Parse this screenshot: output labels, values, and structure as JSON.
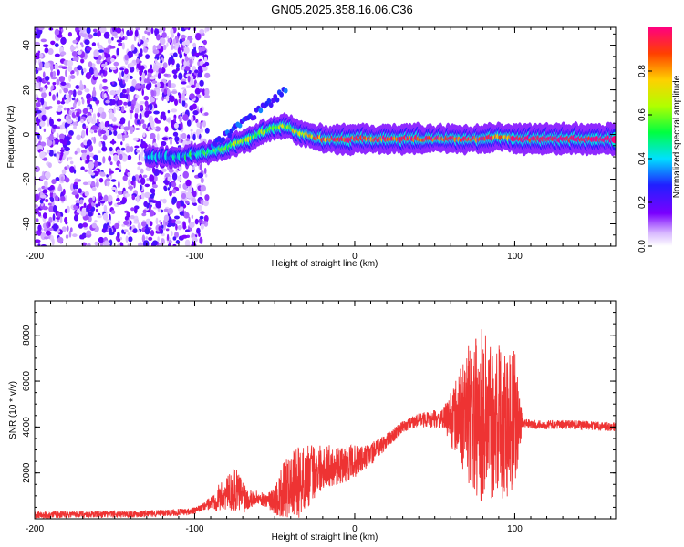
{
  "title": "GN05.2025.358.16.06.C36",
  "chart_data": [
    {
      "type": "heatmap",
      "xlabel": "Height of straight line (km)",
      "ylabel": "Frequency (Hz)",
      "xlim": [
        -200,
        163
      ],
      "ylim": [
        -50,
        48
      ],
      "xticks": [
        -200,
        -100,
        0,
        100
      ],
      "xtick_labels": [
        "-200",
        "-100",
        "0",
        "100"
      ],
      "yticks": [
        -40,
        -20,
        0,
        20,
        40
      ],
      "ytick_labels": [
        "-40",
        "-20",
        "0",
        "20",
        "40"
      ],
      "colorbar": {
        "label": "Normalized spectral amplitude",
        "range": [
          0,
          1
        ],
        "ticks": [
          0.0,
          0.2,
          0.4,
          0.6,
          0.8
        ],
        "tick_labels": [
          "0.0",
          "0.2",
          "0.4",
          "0.6",
          "0.8"
        ]
      },
      "ridge": {
        "x": [
          -130,
          -110,
          -100,
          -90,
          -80,
          -70,
          -60,
          -50,
          -45,
          -40,
          -35,
          -30,
          -25,
          -20,
          -10,
          0,
          20,
          40,
          60,
          80,
          90,
          95,
          100,
          120,
          140,
          163
        ],
        "freq": [
          -10,
          -10,
          -9,
          -8,
          -6,
          -3,
          0,
          3,
          4,
          3,
          1,
          0,
          -1,
          -2,
          -2,
          -2,
          -2,
          -2,
          -2,
          -2,
          -1,
          -1,
          -2,
          -2,
          -2,
          -2
        ],
        "amplitude": [
          0.25,
          0.35,
          0.4,
          0.45,
          0.5,
          0.55,
          0.5,
          0.5,
          0.55,
          0.6,
          0.65,
          0.7,
          0.75,
          0.8,
          0.85,
          0.85,
          0.85,
          0.85,
          0.85,
          0.85,
          0.8,
          0.7,
          0.9,
          0.95,
          0.95,
          0.95
        ]
      },
      "noise_region_x": [
        -200,
        -100
      ]
    },
    {
      "type": "line",
      "xlabel": "Height of straight line (km)",
      "ylabel": "SNR (10 * v/v)",
      "xlim": [
        -200,
        163
      ],
      "ylim": [
        0,
        9500
      ],
      "xticks": [
        -200,
        -100,
        0,
        100
      ],
      "xtick_labels": [
        "-200",
        "-100",
        "0",
        "100"
      ],
      "yticks": [
        2000,
        4000,
        6000,
        8000
      ],
      "ytick_labels": [
        "2000",
        "4000",
        "6000",
        "8000"
      ],
      "series": [
        {
          "name": "SNR",
          "color": "#ee3333",
          "x": [
            -200,
            -180,
            -160,
            -140,
            -120,
            -105,
            -100,
            -95,
            -90,
            -85,
            -80,
            -75,
            -70,
            -65,
            -60,
            -55,
            -50,
            -45,
            -40,
            -35,
            -30,
            -25,
            -20,
            -15,
            -10,
            -5,
            0,
            5,
            10,
            15,
            20,
            25,
            30,
            40,
            50,
            55,
            60,
            65,
            70,
            75,
            80,
            85,
            90,
            95,
            100,
            105,
            110,
            120,
            130,
            140,
            150,
            163
          ],
          "y": [
            150,
            200,
            200,
            200,
            250,
            300,
            350,
            500,
            700,
            900,
            1100,
            1300,
            1000,
            900,
            900,
            800,
            800,
            1200,
            1400,
            1600,
            1800,
            2100,
            2300,
            2300,
            2300,
            2400,
            2500,
            2600,
            2800,
            3100,
            3400,
            3700,
            4000,
            4300,
            4350,
            4350,
            4400,
            4400,
            4500,
            4500,
            4500,
            4400,
            4400,
            4300,
            4300,
            4200,
            4100,
            4100,
            4100,
            4100,
            4050,
            4000
          ],
          "spread": [
            150,
            150,
            150,
            150,
            150,
            150,
            150,
            150,
            300,
            600,
            700,
            1000,
            800,
            400,
            300,
            300,
            600,
            1200,
            1400,
            1600,
            1400,
            1200,
            1000,
            900,
            800,
            800,
            700,
            600,
            500,
            400,
            350,
            300,
            250,
            300,
            400,
            400,
            1200,
            2000,
            3000,
            3500,
            4000,
            3500,
            3500,
            3500,
            3000,
            200,
            200,
            200,
            200,
            200,
            200,
            200
          ]
        }
      ]
    }
  ]
}
